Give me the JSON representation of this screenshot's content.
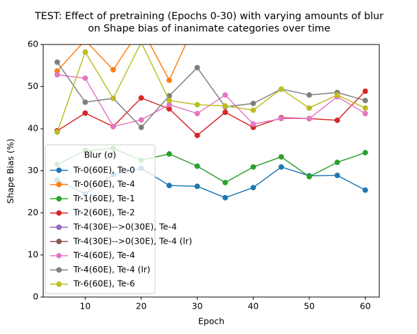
{
  "chart_data": {
    "type": "line",
    "title": "TEST: Effect of pretraining (Epochs 0-30) with varying amounts of blur\non Shape bias of inanimate categories over time",
    "xlabel": "Epoch",
    "ylabel": "Shape Bias (%)",
    "x": [
      5,
      10,
      15,
      20,
      25,
      30,
      35,
      40,
      45,
      50,
      55,
      60
    ],
    "xlim": [
      2.5,
      62.5
    ],
    "xticks": [
      10,
      20,
      30,
      40,
      50,
      60
    ],
    "ylim": [
      0,
      60
    ],
    "yticks": [
      0,
      10,
      20,
      30,
      40,
      50,
      60
    ],
    "legend_title": "Blur (σ)",
    "legend_loc": "lower left",
    "series": [
      {
        "name": "Tr-0(60E), Te-0",
        "color": "#1f77b4",
        "values": [
          27.8,
          24.5,
          29.1,
          30.6,
          26.5,
          26.3,
          23.6,
          26.0,
          30.9,
          28.8,
          28.9,
          25.4
        ]
      },
      {
        "name": "Tr-0(60E), Te-4",
        "color": "#ff7f0e",
        "values": [
          53.7,
          61,
          54.0,
          64,
          51.5,
          66,
          null,
          null,
          null,
          null,
          null,
          null
        ]
      },
      {
        "name": "Tr-1(60E), Te-1",
        "color": "#2ca02c",
        "values": [
          31.5,
          34.8,
          35.3,
          32.5,
          34.0,
          31.1,
          27.2,
          30.9,
          33.3,
          28.6,
          32.0,
          34.3
        ]
      },
      {
        "name": "Tr-2(60E), Te-2",
        "color": "#d62728",
        "values": [
          39.5,
          43.7,
          40.5,
          47.3,
          44.7,
          38.4,
          43.9,
          40.3,
          42.6,
          42.4,
          42.0,
          48.9
        ]
      },
      {
        "name": "Tr-4(30E)-->0(30E), Te-4",
        "color": "#9467bd",
        "values": [
          null,
          null,
          null,
          null,
          null,
          null,
          null,
          null,
          null,
          null,
          null,
          null
        ]
      },
      {
        "name": "Tr-4(30E)-->0(30E), Te-4 (lr)",
        "color": "#8c564b",
        "values": [
          null,
          null,
          null,
          null,
          null,
          null,
          null,
          null,
          null,
          null,
          null,
          null
        ]
      },
      {
        "name": "Tr-4(60E), Te-4",
        "color": "#e377c2",
        "values": [
          52.8,
          52.0,
          40.5,
          42.1,
          45.7,
          43.6,
          48.0,
          41.1,
          42.4,
          42.4,
          47.6,
          43.6
        ]
      },
      {
        "name": "Tr-4(60E), Te-4 (lr)",
        "color": "#7f7f7f",
        "values": [
          55.8,
          46.3,
          47.2,
          40.3,
          47.8,
          54.5,
          45.2,
          46.0,
          49.4,
          48.0,
          48.6,
          46.7
        ]
      },
      {
        "name": "Tr-6(60E), Te-6",
        "color": "#bcbd22",
        "values": [
          39.2,
          58.2,
          47.2,
          60.5,
          46.7,
          45.7,
          45.4,
          44.4,
          49.4,
          44.9,
          48.0,
          44.9
        ]
      }
    ]
  }
}
